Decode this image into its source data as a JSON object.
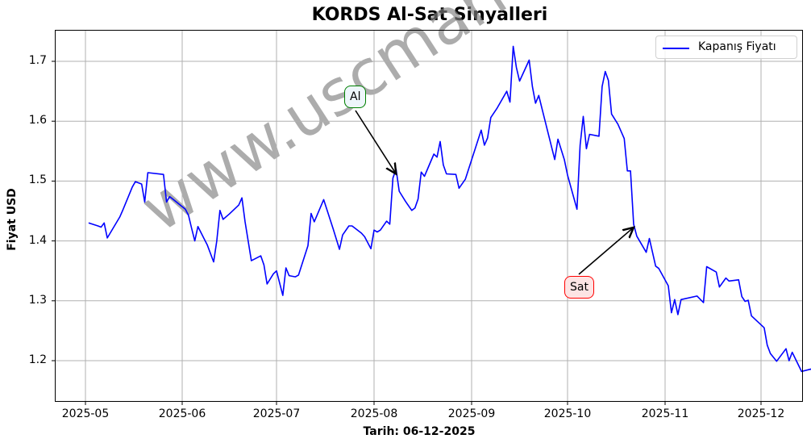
{
  "chart_data": {
    "type": "line",
    "title": "KORDS Al-Sat Sinyalleri",
    "xlabel": "Tarih: 06-12-2025",
    "ylabel": "Fiyat USD",
    "ylim": [
      1.13,
      1.75
    ],
    "grid": true,
    "legend_position": "upper right",
    "x_ticks": [
      "2025-05",
      "2025-06",
      "2025-07",
      "2025-08",
      "2025-09",
      "2025-10",
      "2025-11",
      "2025-12"
    ],
    "y_ticks": [
      "1.2",
      "1.3",
      "1.4",
      "1.5",
      "1.6",
      "1.7"
    ],
    "series": [
      {
        "name": "Kapanış Fiyatı",
        "color": "#0000ff",
        "points": [
          [
            "2025-05-02",
            1.43
          ],
          [
            "2025-05-05",
            1.425
          ],
          [
            "2025-05-06",
            1.423
          ],
          [
            "2025-05-07",
            1.43
          ],
          [
            "2025-05-08",
            1.405
          ],
          [
            "2025-05-12",
            1.44
          ],
          [
            "2025-05-13",
            1.452
          ],
          [
            "2025-05-16",
            1.49
          ],
          [
            "2025-05-17",
            1.499
          ],
          [
            "2025-05-19",
            1.495
          ],
          [
            "2025-05-20",
            1.465
          ],
          [
            "2025-05-21",
            1.514
          ],
          [
            "2025-05-26",
            1.511
          ],
          [
            "2025-05-27",
            1.465
          ],
          [
            "2025-05-28",
            1.474
          ],
          [
            "2025-05-29",
            1.47
          ],
          [
            "2025-06-02",
            1.453
          ],
          [
            "2025-06-03",
            1.443
          ],
          [
            "2025-06-04",
            1.421
          ],
          [
            "2025-06-05",
            1.4
          ],
          [
            "2025-06-06",
            1.424
          ],
          [
            "2025-06-09",
            1.393
          ],
          [
            "2025-06-11",
            1.365
          ],
          [
            "2025-06-12",
            1.4
          ],
          [
            "2025-06-13",
            1.451
          ],
          [
            "2025-06-14",
            1.436
          ],
          [
            "2025-06-16",
            1.445
          ],
          [
            "2025-06-19",
            1.46
          ],
          [
            "2025-06-20",
            1.472
          ],
          [
            "2025-06-21",
            1.432
          ],
          [
            "2025-06-23",
            1.367
          ],
          [
            "2025-06-26",
            1.375
          ],
          [
            "2025-06-27",
            1.36
          ],
          [
            "2025-06-28",
            1.328
          ],
          [
            "2025-06-30",
            1.345
          ],
          [
            "2025-07-01",
            1.35
          ],
          [
            "2025-07-03",
            1.309
          ],
          [
            "2025-07-04",
            1.355
          ],
          [
            "2025-07-05",
            1.342
          ],
          [
            "2025-07-07",
            1.34
          ],
          [
            "2025-07-08",
            1.343
          ],
          [
            "2025-07-11",
            1.392
          ],
          [
            "2025-07-12",
            1.446
          ],
          [
            "2025-07-13",
            1.432
          ],
          [
            "2025-07-16",
            1.469
          ],
          [
            "2025-07-19",
            1.42
          ],
          [
            "2025-07-21",
            1.386
          ],
          [
            "2025-07-22",
            1.41
          ],
          [
            "2025-07-24",
            1.425
          ],
          [
            "2025-07-25",
            1.425
          ],
          [
            "2025-07-28",
            1.413
          ],
          [
            "2025-07-29",
            1.407
          ],
          [
            "2025-07-31",
            1.387
          ],
          [
            "2025-08-01",
            1.418
          ],
          [
            "2025-08-02",
            1.415
          ],
          [
            "2025-08-03",
            1.418
          ],
          [
            "2025-08-05",
            1.433
          ],
          [
            "2025-08-06",
            1.428
          ],
          [
            "2025-08-07",
            1.505
          ],
          [
            "2025-08-08",
            1.52
          ],
          [
            "2025-08-09",
            1.483
          ],
          [
            "2025-08-11",
            1.466
          ],
          [
            "2025-08-13",
            1.451
          ],
          [
            "2025-08-14",
            1.455
          ],
          [
            "2025-08-15",
            1.47
          ],
          [
            "2025-08-16",
            1.515
          ],
          [
            "2025-08-17",
            1.508
          ],
          [
            "2025-08-20",
            1.545
          ],
          [
            "2025-08-21",
            1.54
          ],
          [
            "2025-08-22",
            1.566
          ],
          [
            "2025-08-23",
            1.527
          ],
          [
            "2025-08-24",
            1.512
          ],
          [
            "2025-08-27",
            1.511
          ],
          [
            "2025-08-28",
            1.488
          ],
          [
            "2025-08-30",
            1.503
          ],
          [
            "2025-09-02",
            1.552
          ],
          [
            "2025-09-04",
            1.585
          ],
          [
            "2025-09-05",
            1.56
          ],
          [
            "2025-09-06",
            1.572
          ],
          [
            "2025-09-07",
            1.606
          ],
          [
            "2025-09-09",
            1.622
          ],
          [
            "2025-09-12",
            1.65
          ],
          [
            "2025-09-13",
            1.632
          ],
          [
            "2025-09-14",
            1.725
          ],
          [
            "2025-09-15",
            1.69
          ],
          [
            "2025-09-16",
            1.667
          ],
          [
            "2025-09-19",
            1.702
          ],
          [
            "2025-09-20",
            1.658
          ],
          [
            "2025-09-21",
            1.63
          ],
          [
            "2025-09-22",
            1.643
          ],
          [
            "2025-09-23",
            1.621
          ],
          [
            "2025-09-27",
            1.536
          ],
          [
            "2025-09-28",
            1.57
          ],
          [
            "2025-09-30",
            1.536
          ],
          [
            "2025-10-01",
            1.51
          ],
          [
            "2025-10-04",
            1.453
          ],
          [
            "2025-10-05",
            1.56
          ],
          [
            "2025-10-06",
            1.608
          ],
          [
            "2025-10-07",
            1.554
          ],
          [
            "2025-10-08",
            1.578
          ],
          [
            "2025-10-11",
            1.575
          ],
          [
            "2025-10-12",
            1.658
          ],
          [
            "2025-10-13",
            1.683
          ],
          [
            "2025-10-14",
            1.668
          ],
          [
            "2025-10-15",
            1.612
          ],
          [
            "2025-10-17",
            1.595
          ],
          [
            "2025-10-19",
            1.571
          ],
          [
            "2025-10-20",
            1.517
          ],
          [
            "2025-10-21",
            1.517
          ],
          [
            "2025-10-22",
            1.428
          ],
          [
            "2025-10-23",
            1.408
          ],
          [
            "2025-10-26",
            1.381
          ],
          [
            "2025-10-27",
            1.404
          ],
          [
            "2025-10-29",
            1.358
          ],
          [
            "2025-10-30",
            1.354
          ],
          [
            "2025-11-02",
            1.325
          ],
          [
            "2025-11-03",
            1.28
          ],
          [
            "2025-11-04",
            1.302
          ],
          [
            "2025-11-05",
            1.277
          ],
          [
            "2025-11-06",
            1.302
          ],
          [
            "2025-11-11",
            1.308
          ],
          [
            "2025-11-13",
            1.297
          ],
          [
            "2025-11-14",
            1.357
          ],
          [
            "2025-11-17",
            1.348
          ],
          [
            "2025-11-18",
            1.323
          ],
          [
            "2025-11-20",
            1.338
          ],
          [
            "2025-11-21",
            1.333
          ],
          [
            "2025-11-24",
            1.335
          ],
          [
            "2025-11-25",
            1.307
          ],
          [
            "2025-11-26",
            1.299
          ],
          [
            "2025-11-27",
            1.301
          ],
          [
            "2025-11-28",
            1.275
          ],
          [
            "2025-12-02",
            1.255
          ],
          [
            "2025-12-03",
            1.226
          ],
          [
            "2025-12-04",
            1.212
          ],
          [
            "2025-12-06",
            1.199
          ],
          [
            "2025-12-09",
            1.22
          ],
          [
            "2025-12-10",
            1.2
          ],
          [
            "2025-12-11",
            1.214
          ],
          [
            "2025-12-14",
            1.182
          ],
          [
            "2025-12-17",
            1.186
          ],
          [
            "2025-12-20",
            1.165
          ],
          [
            "2025-12-21",
            1.165
          ],
          [
            "2025-12-23",
            1.159
          ],
          [
            "2025-12-27",
            1.2
          ],
          [
            "2025-12-28",
            1.213
          ],
          [
            "2025-12-29",
            1.203
          ],
          [
            "2025-12-30",
            1.176
          ]
        ]
      }
    ],
    "annotations": [
      {
        "label": "Al",
        "type": "buy",
        "date": "2025-08-08",
        "value": 1.52
      },
      {
        "label": "Sat",
        "type": "sell",
        "date": "2025-10-22",
        "value": 1.428
      }
    ]
  },
  "page": {
    "title": "KORDS Al-Sat Sinyalleri",
    "xlabel": "Tarih: 06-12-2025",
    "ylabel": "Fiyat USD",
    "legend_label": "Kapanış Fiyatı",
    "annot_buy": "Al",
    "annot_sell": "Sat",
    "watermark": "www.uscmarkets.com",
    "x_ticks": [
      "2025-05",
      "2025-06",
      "2025-07",
      "2025-08",
      "2025-09",
      "2025-10",
      "2025-11",
      "2025-12"
    ],
    "y_ticks": [
      "1.2",
      "1.3",
      "1.4",
      "1.5",
      "1.6",
      "1.7"
    ]
  },
  "colors": {
    "line": "#0000ff",
    "grid": "#b0b0b0",
    "buy_border": "#008000",
    "buy_fill": "#eef6fb",
    "sell_border": "#ff0000",
    "sell_fill": "#fde4e4",
    "watermark": "#808080"
  }
}
